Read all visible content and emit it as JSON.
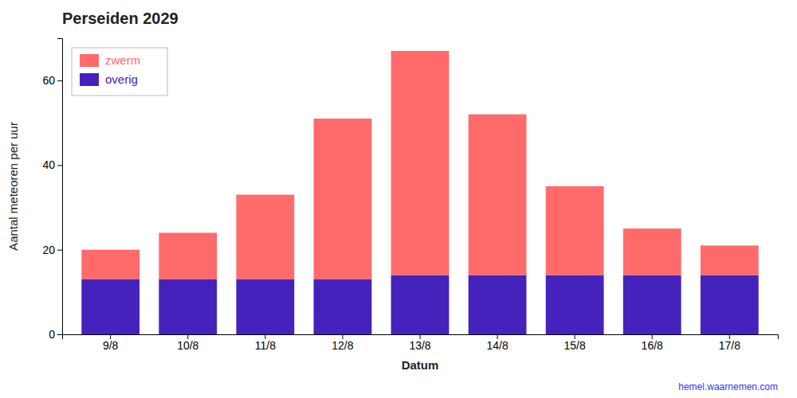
{
  "chart_data": {
    "type": "bar",
    "title": "Perseiden 2029",
    "xlabel": "Datum",
    "ylabel": "Aantal meteoren per uur",
    "categories": [
      "9/8",
      "10/8",
      "11/8",
      "12/8",
      "13/8",
      "14/8",
      "15/8",
      "16/8",
      "17/8"
    ],
    "series": [
      {
        "name": "overig",
        "color": "#4422BB",
        "values": [
          13,
          13,
          13,
          13,
          14,
          14,
          14,
          14,
          14
        ]
      },
      {
        "name": "zwerm",
        "color": "#FF6B6B",
        "values": [
          7,
          11,
          20,
          38,
          53,
          38,
          21,
          11,
          7
        ]
      }
    ],
    "stacked": true,
    "ylim": [
      0,
      70
    ],
    "yticks": [
      0,
      20,
      40,
      60
    ],
    "grid": false,
    "legend": "upper left",
    "annotations": [
      "hemel.waarnemen.com"
    ]
  }
}
